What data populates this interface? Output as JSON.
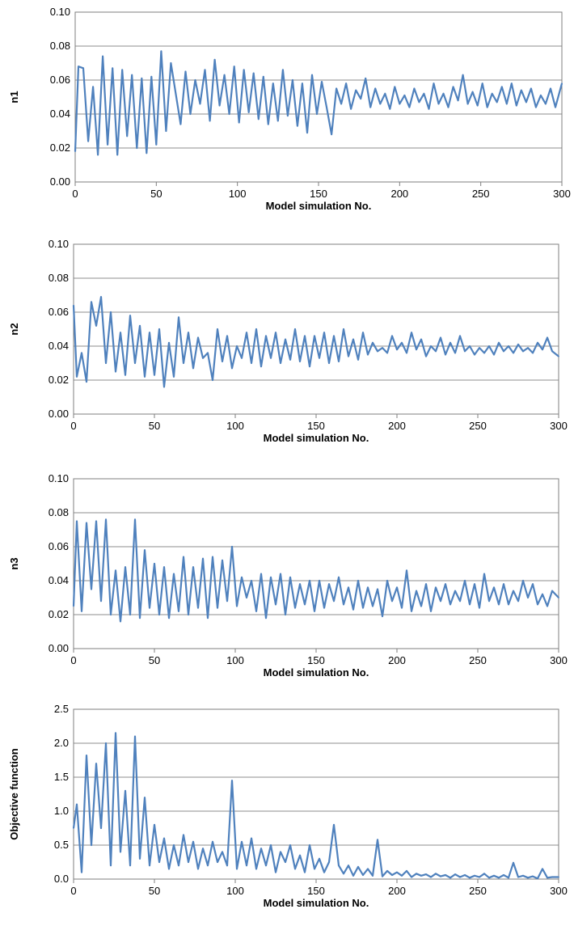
{
  "chart_data": [
    {
      "type": "line",
      "xlabel": "Model simulation No.",
      "ylabel": "n1",
      "xlim": [
        0,
        300
      ],
      "ylim": [
        0,
        0.1
      ],
      "xticks": [
        "0",
        "50",
        "100",
        "150",
        "200",
        "250",
        "300"
      ],
      "yticks": [
        "0.00",
        "0.02",
        "0.04",
        "0.06",
        "0.08",
        "0.10"
      ],
      "grid": "horizontal",
      "color": "#4f81bd",
      "series": [
        {
          "x": [
            0,
            2,
            5,
            8,
            11,
            14,
            17,
            20,
            23,
            26,
            29,
            32,
            35,
            38,
            41,
            44,
            47,
            50,
            53,
            56,
            59,
            62,
            65,
            68,
            71,
            74,
            77,
            80,
            83,
            86,
            89,
            92,
            95,
            98,
            101,
            104,
            107,
            110,
            113,
            116,
            119,
            122,
            125,
            128,
            131,
            134,
            137,
            140,
            143,
            146,
            149,
            152,
            155,
            158,
            161,
            164,
            167,
            170,
            173,
            176,
            179,
            182,
            185,
            188,
            191,
            194,
            197,
            200,
            203,
            206,
            209,
            212,
            215,
            218,
            221,
            224,
            227,
            230,
            233,
            236,
            239,
            242,
            245,
            248,
            251,
            254,
            257,
            260,
            263,
            266,
            269,
            272,
            275,
            278,
            281,
            284,
            287,
            290,
            293,
            296,
            300
          ],
          "values": [
            0.018,
            0.068,
            0.067,
            0.024,
            0.056,
            0.016,
            0.074,
            0.022,
            0.067,
            0.016,
            0.066,
            0.027,
            0.063,
            0.02,
            0.061,
            0.017,
            0.062,
            0.022,
            0.077,
            0.03,
            0.07,
            0.052,
            0.034,
            0.065,
            0.04,
            0.06,
            0.046,
            0.066,
            0.036,
            0.072,
            0.045,
            0.063,
            0.04,
            0.068,
            0.035,
            0.066,
            0.041,
            0.064,
            0.037,
            0.062,
            0.034,
            0.058,
            0.036,
            0.066,
            0.039,
            0.06,
            0.033,
            0.058,
            0.029,
            0.063,
            0.04,
            0.059,
            0.044,
            0.028,
            0.055,
            0.046,
            0.058,
            0.043,
            0.054,
            0.049,
            0.061,
            0.044,
            0.055,
            0.046,
            0.052,
            0.043,
            0.056,
            0.046,
            0.051,
            0.044,
            0.055,
            0.047,
            0.052,
            0.043,
            0.058,
            0.046,
            0.052,
            0.044,
            0.056,
            0.048,
            0.063,
            0.046,
            0.053,
            0.045,
            0.058,
            0.044,
            0.052,
            0.047,
            0.056,
            0.046,
            0.058,
            0.045,
            0.054,
            0.047,
            0.055,
            0.044,
            0.051,
            0.046,
            0.055,
            0.044,
            0.058
          ]
        }
      ]
    },
    {
      "type": "line",
      "xlabel": "Model simulation No.",
      "ylabel": "n2",
      "xlim": [
        0,
        300
      ],
      "ylim": [
        0,
        0.1
      ],
      "xticks": [
        "0",
        "50",
        "100",
        "150",
        "200",
        "250",
        "300"
      ],
      "yticks": [
        "0.00",
        "0.02",
        "0.04",
        "0.06",
        "0.08",
        "0.10"
      ],
      "grid": "horizontal",
      "color": "#4f81bd",
      "series": [
        {
          "x": [
            0,
            2,
            5,
            8,
            11,
            14,
            17,
            20,
            23,
            26,
            29,
            32,
            35,
            38,
            41,
            44,
            47,
            50,
            53,
            56,
            59,
            62,
            65,
            68,
            71,
            74,
            77,
            80,
            83,
            86,
            89,
            92,
            95,
            98,
            101,
            104,
            107,
            110,
            113,
            116,
            119,
            122,
            125,
            128,
            131,
            134,
            137,
            140,
            143,
            146,
            149,
            152,
            155,
            158,
            161,
            164,
            167,
            170,
            173,
            176,
            179,
            182,
            185,
            188,
            191,
            194,
            197,
            200,
            203,
            206,
            209,
            212,
            215,
            218,
            221,
            224,
            227,
            230,
            233,
            236,
            239,
            242,
            245,
            248,
            251,
            254,
            257,
            260,
            263,
            266,
            269,
            272,
            275,
            278,
            281,
            284,
            287,
            290,
            293,
            296,
            300
          ],
          "values": [
            0.064,
            0.022,
            0.036,
            0.019,
            0.066,
            0.052,
            0.069,
            0.03,
            0.06,
            0.025,
            0.048,
            0.023,
            0.058,
            0.03,
            0.052,
            0.022,
            0.048,
            0.023,
            0.05,
            0.016,
            0.042,
            0.022,
            0.057,
            0.03,
            0.048,
            0.027,
            0.045,
            0.033,
            0.036,
            0.02,
            0.05,
            0.031,
            0.046,
            0.027,
            0.04,
            0.033,
            0.048,
            0.03,
            0.05,
            0.028,
            0.046,
            0.033,
            0.048,
            0.03,
            0.044,
            0.032,
            0.05,
            0.031,
            0.046,
            0.028,
            0.046,
            0.033,
            0.048,
            0.03,
            0.046,
            0.031,
            0.05,
            0.034,
            0.044,
            0.032,
            0.048,
            0.035,
            0.042,
            0.037,
            0.039,
            0.036,
            0.046,
            0.038,
            0.042,
            0.036,
            0.048,
            0.038,
            0.044,
            0.034,
            0.04,
            0.037,
            0.045,
            0.035,
            0.042,
            0.036,
            0.046,
            0.037,
            0.04,
            0.035,
            0.039,
            0.036,
            0.04,
            0.035,
            0.042,
            0.037,
            0.04,
            0.036,
            0.041,
            0.037,
            0.039,
            0.036,
            0.042,
            0.038,
            0.045,
            0.037,
            0.034
          ]
        }
      ]
    },
    {
      "type": "line",
      "xlabel": "Model simulation No.",
      "ylabel": "n3",
      "xlim": [
        0,
        300
      ],
      "ylim": [
        0,
        0.1
      ],
      "xticks": [
        "0",
        "50",
        "100",
        "150",
        "200",
        "250",
        "300"
      ],
      "yticks": [
        "0.00",
        "0.02",
        "0.04",
        "0.06",
        "0.08",
        "0.10"
      ],
      "grid": "horizontal",
      "color": "#4f81bd",
      "series": [
        {
          "x": [
            0,
            2,
            5,
            8,
            11,
            14,
            17,
            20,
            23,
            26,
            29,
            32,
            35,
            38,
            41,
            44,
            47,
            50,
            53,
            56,
            59,
            62,
            65,
            68,
            71,
            74,
            77,
            80,
            83,
            86,
            89,
            92,
            95,
            98,
            101,
            104,
            107,
            110,
            113,
            116,
            119,
            122,
            125,
            128,
            131,
            134,
            137,
            140,
            143,
            146,
            149,
            152,
            155,
            158,
            161,
            164,
            167,
            170,
            173,
            176,
            179,
            182,
            185,
            188,
            191,
            194,
            197,
            200,
            203,
            206,
            209,
            212,
            215,
            218,
            221,
            224,
            227,
            230,
            233,
            236,
            239,
            242,
            245,
            248,
            251,
            254,
            257,
            260,
            263,
            266,
            269,
            272,
            275,
            278,
            281,
            284,
            287,
            290,
            293,
            296,
            300
          ],
          "values": [
            0.025,
            0.075,
            0.022,
            0.074,
            0.035,
            0.075,
            0.028,
            0.076,
            0.02,
            0.046,
            0.016,
            0.048,
            0.02,
            0.076,
            0.018,
            0.058,
            0.024,
            0.05,
            0.02,
            0.048,
            0.018,
            0.044,
            0.022,
            0.054,
            0.02,
            0.048,
            0.024,
            0.053,
            0.018,
            0.054,
            0.024,
            0.052,
            0.028,
            0.06,
            0.025,
            0.042,
            0.03,
            0.04,
            0.022,
            0.044,
            0.018,
            0.042,
            0.026,
            0.044,
            0.02,
            0.042,
            0.024,
            0.038,
            0.026,
            0.04,
            0.022,
            0.04,
            0.024,
            0.038,
            0.028,
            0.042,
            0.026,
            0.036,
            0.023,
            0.04,
            0.024,
            0.036,
            0.025,
            0.035,
            0.019,
            0.04,
            0.028,
            0.036,
            0.024,
            0.046,
            0.022,
            0.034,
            0.025,
            0.038,
            0.022,
            0.036,
            0.028,
            0.038,
            0.026,
            0.034,
            0.028,
            0.04,
            0.026,
            0.038,
            0.024,
            0.044,
            0.028,
            0.036,
            0.026,
            0.038,
            0.026,
            0.034,
            0.028,
            0.04,
            0.03,
            0.038,
            0.026,
            0.032,
            0.025,
            0.034,
            0.03
          ]
        }
      ]
    },
    {
      "type": "line",
      "xlabel": "Model simulation No.",
      "ylabel": "Objective function",
      "xlim": [
        0,
        300
      ],
      "ylim": [
        0,
        2.5
      ],
      "xticks": [
        "0",
        "50",
        "100",
        "150",
        "200",
        "250",
        "300"
      ],
      "yticks": [
        "0.0",
        "0.5",
        "1.0",
        "1.5",
        "2.0",
        "2.5"
      ],
      "grid": "horizontal",
      "color": "#4f81bd",
      "series": [
        {
          "x": [
            0,
            2,
            5,
            8,
            11,
            14,
            17,
            20,
            23,
            26,
            29,
            32,
            35,
            38,
            41,
            44,
            47,
            50,
            53,
            56,
            59,
            62,
            65,
            68,
            71,
            74,
            77,
            80,
            83,
            86,
            89,
            92,
            95,
            98,
            101,
            104,
            107,
            110,
            113,
            116,
            119,
            122,
            125,
            128,
            131,
            134,
            137,
            140,
            143,
            146,
            149,
            152,
            155,
            158,
            161,
            164,
            167,
            170,
            173,
            176,
            179,
            182,
            185,
            188,
            191,
            194,
            197,
            200,
            203,
            206,
            209,
            212,
            215,
            218,
            221,
            224,
            227,
            230,
            233,
            236,
            239,
            242,
            245,
            248,
            251,
            254,
            257,
            260,
            263,
            266,
            269,
            272,
            275,
            278,
            281,
            284,
            287,
            290,
            293,
            296,
            300
          ],
          "values": [
            0.75,
            1.1,
            0.1,
            1.82,
            0.5,
            1.7,
            0.75,
            2.0,
            0.2,
            2.15,
            0.4,
            1.3,
            0.2,
            2.1,
            0.3,
            1.2,
            0.2,
            0.8,
            0.25,
            0.6,
            0.15,
            0.5,
            0.2,
            0.65,
            0.25,
            0.55,
            0.15,
            0.45,
            0.2,
            0.55,
            0.25,
            0.4,
            0.2,
            1.45,
            0.15,
            0.55,
            0.2,
            0.6,
            0.15,
            0.45,
            0.2,
            0.5,
            0.1,
            0.4,
            0.25,
            0.5,
            0.15,
            0.35,
            0.1,
            0.5,
            0.15,
            0.3,
            0.1,
            0.25,
            0.8,
            0.2,
            0.08,
            0.2,
            0.05,
            0.18,
            0.06,
            0.15,
            0.05,
            0.58,
            0.04,
            0.12,
            0.06,
            0.1,
            0.05,
            0.12,
            0.03,
            0.08,
            0.05,
            0.07,
            0.03,
            0.08,
            0.04,
            0.06,
            0.02,
            0.07,
            0.03,
            0.06,
            0.02,
            0.05,
            0.03,
            0.08,
            0.02,
            0.05,
            0.02,
            0.06,
            0.02,
            0.24,
            0.03,
            0.05,
            0.02,
            0.04,
            0.01,
            0.15,
            0.02,
            0.03,
            0.03
          ]
        }
      ]
    }
  ]
}
